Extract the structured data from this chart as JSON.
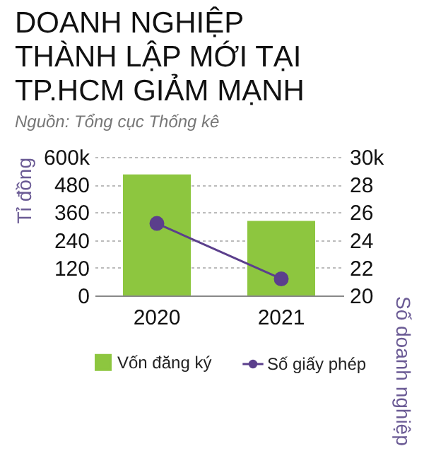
{
  "chart_data": {
    "type": "bar",
    "title": "DOANH NGHIỆP\nTHÀNH LẬP MỚI TẠI\nTP.HCM GIẢM MẠNH",
    "annotations": [
      "Nguồn: Tổng cục Thống kê"
    ],
    "categories": [
      "2020",
      "2021"
    ],
    "ylabel": "Tỉ đồng",
    "y2label": "Số doanh nghiệp",
    "ylim": [
      0,
      600
    ],
    "yticks": [
      0,
      120,
      240,
      360,
      480,
      {
        "value": 600,
        "label": "600k"
      }
    ],
    "y2lim": [
      20,
      30
    ],
    "y2ticks": [
      20,
      22,
      24,
      26,
      28,
      {
        "value": 30,
        "label": "30k"
      }
    ],
    "grid": "y",
    "legend": "bottom",
    "marker": "circle",
    "series": [
      {
        "name": "Vốn đăng ký",
        "color": "#8dc63f",
        "values": [
          524,
          323
        ]
      },
      {
        "name": "Số giấy phép",
        "type": "line",
        "axis": "y2",
        "color": "#5b3f8c",
        "values": [
          25.2,
          21.2
        ]
      }
    ]
  }
}
